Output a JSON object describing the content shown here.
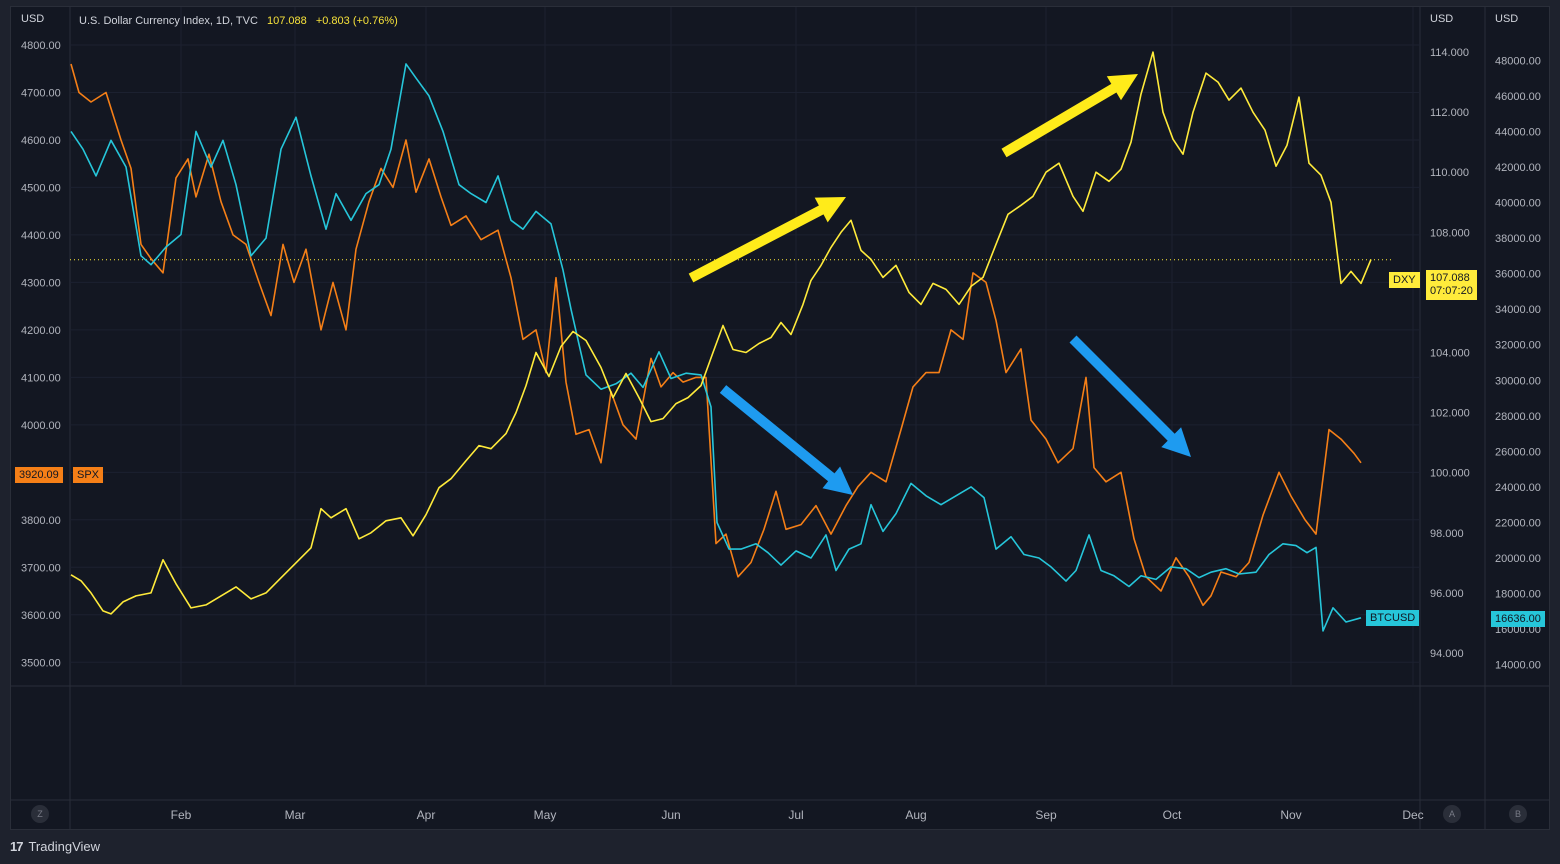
{
  "header": {
    "title": "U.S. Dollar Currency Index, 1D, TVC",
    "price": "107.088",
    "change": "+0.803 (+0.76%)"
  },
  "axis_units": {
    "left": "USD",
    "mid": "USD",
    "right": "USD"
  },
  "badges": {
    "spx_value": "3920.09",
    "spx_label": "SPX",
    "dxy_label": "DXY",
    "dxy_value": "107.088",
    "dxy_countdown": "07:07:20",
    "btc_label": "BTCUSD",
    "btc_value": "16636.00"
  },
  "buttons": {
    "left": "Z",
    "mid": "A",
    "right": "B"
  },
  "footer": {
    "brand": "TradingView"
  },
  "colors": {
    "spx": "#f57f17",
    "btc": "#26c6da",
    "dxy": "#ffeb3b",
    "arrow_yellow": "#ffeb1a",
    "arrow_blue": "#1e9bf0"
  },
  "chart_data": {
    "type": "line",
    "x_labels": [
      "Feb",
      "Mar",
      "Apr",
      "May",
      "Jun",
      "Jul",
      "Aug",
      "Sep",
      "Oct",
      "Nov",
      "Dec"
    ],
    "left_axis": {
      "label": "SPX",
      "ticks": [
        "4800.00",
        "4700.00",
        "4600.00",
        "4500.00",
        "4400.00",
        "4300.00",
        "4200.00",
        "4100.00",
        "4000.00",
        "3900.00",
        "3800.00",
        "3700.00",
        "3600.00",
        "3500.00"
      ],
      "range": [
        3450,
        4880
      ]
    },
    "dxy_axis": {
      "label": "DXY",
      "ticks": [
        "114.000",
        "112.000",
        "110.000",
        "108.000",
        "106.000",
        "104.000",
        "102.000",
        "100.000",
        "98.000",
        "96.000",
        "94.000"
      ],
      "range": [
        92.9,
        115.5
      ]
    },
    "btc_axis": {
      "label": "BTCUSD",
      "ticks": [
        "48000.00",
        "46000.00",
        "44000.00",
        "42000.00",
        "40000.00",
        "38000.00",
        "36000.00",
        "34000.00",
        "32000.00",
        "30000.00",
        "28000.00",
        "26000.00",
        "24000.00",
        "22000.00",
        "20000.00",
        "18000.00",
        "16000.00",
        "14000.00"
      ],
      "range": [
        12800,
        51000
      ]
    },
    "series": [
      {
        "name": "SPX",
        "values": [
          [
            0,
            4770
          ],
          [
            3,
            4700
          ],
          [
            6,
            4695
          ],
          [
            9,
            4675
          ],
          [
            12,
            4670
          ],
          [
            15,
            4695
          ],
          [
            18,
            4650
          ],
          [
            21,
            4605
          ],
          [
            24,
            4585
          ],
          [
            27,
            4570
          ],
          [
            30,
            4510
          ],
          [
            33,
            4470
          ],
          [
            36,
            4420
          ],
          [
            39,
            4395
          ],
          [
            42,
            4380
          ],
          [
            45,
            4360
          ],
          [
            48,
            4350
          ],
          [
            51,
            4335
          ],
          [
            54,
            4330
          ],
          [
            57,
            4390
          ],
          [
            60,
            4440
          ],
          [
            63,
            4510
          ],
          [
            66,
            4530
          ],
          [
            69,
            4550
          ],
          [
            72,
            4580
          ],
          [
            75,
            4590
          ],
          [
            78,
            4570
          ],
          [
            81,
            4530
          ],
          [
            84,
            4500
          ],
          [
            87,
            4495
          ],
          [
            90,
            4505
          ],
          [
            93,
            4530
          ],
          [
            96,
            4570
          ],
          [
            99,
            4560
          ],
          [
            102,
            4520
          ],
          [
            105,
            4470
          ],
          [
            108,
            4440
          ],
          [
            111,
            4410
          ],
          [
            114,
            4400
          ],
          [
            117,
            4390
          ],
          [
            120,
            4380
          ],
          [
            123,
            4360
          ],
          [
            126,
            4340
          ],
          [
            129,
            4320
          ],
          [
            132,
            4300
          ],
          [
            135,
            4285
          ],
          [
            138,
            4270
          ],
          [
            141,
            4310
          ],
          [
            144,
            4370
          ],
          [
            147,
            4380
          ],
          [
            150,
            4350
          ],
          [
            153,
            4310
          ],
          [
            156,
            4280
          ],
          [
            159,
            4250
          ],
          [
            162,
            4210
          ],
          [
            165,
            4190
          ],
          [
            168,
            4200
          ],
          [
            171,
            4230
          ],
          [
            174,
            4250
          ],
          [
            177,
            4270
          ],
          [
            180,
            4300
          ],
          [
            183,
            4340
          ],
          [
            186,
            4380
          ],
          [
            189,
            4410
          ],
          [
            192,
            4440
          ],
          [
            195,
            4460
          ],
          [
            198,
            4450
          ],
          [
            201,
            4440
          ],
          [
            204,
            4420
          ],
          [
            207,
            4410
          ],
          [
            210,
            4480
          ],
          [
            213,
            4520
          ],
          [
            216,
            4560
          ],
          [
            219,
            4580
          ],
          [
            222,
            4620
          ],
          [
            225,
            4590
          ],
          [
            228,
            4540
          ],
          [
            231,
            4500
          ],
          [
            234,
            4480
          ],
          [
            237,
            4470
          ],
          [
            240,
            4430
          ],
          [
            243,
            4410
          ],
          [
            246,
            4400
          ],
          [
            249,
            4390
          ],
          [
            252,
            4380
          ],
          [
            255,
            4350
          ],
          [
            258,
            4320
          ],
          [
            261,
            4270
          ],
          [
            264,
            4200
          ],
          [
            267,
            4170
          ],
          [
            270,
            4120
          ],
          [
            273,
            4100
          ],
          [
            276,
            4060
          ],
          [
            279,
            4030
          ],
          [
            282,
            4000
          ],
          [
            285,
            3980
          ],
          [
            288,
            3950
          ],
          [
            291,
            3960
          ],
          [
            294,
            3990
          ],
          [
            297,
            4040
          ],
          [
            300,
            4070
          ],
          [
            303,
            4060
          ],
          [
            306,
            4050
          ],
          [
            309,
            4030
          ],
          [
            312,
            4040
          ],
          [
            315,
            4060
          ],
          [
            318,
            4080
          ],
          [
            321,
            4090
          ],
          [
            324,
            4120
          ],
          [
            327,
            4130
          ],
          [
            330,
            4100
          ],
          [
            333,
            4060
          ],
          [
            336,
            4010
          ],
          [
            339,
            3960
          ],
          [
            342,
            3900
          ],
          [
            345,
            3830
          ],
          [
            348,
            3730
          ],
          [
            351,
            3670
          ],
          [
            354,
            3690
          ],
          [
            357,
            3720
          ],
          [
            360,
            3780
          ],
          [
            363,
            3840
          ],
          [
            366,
            3880
          ],
          [
            369,
            3900
          ],
          [
            372,
            3880
          ],
          [
            375,
            3850
          ],
          [
            378,
            3820
          ],
          [
            381,
            3800
          ],
          [
            384,
            3810
          ],
          [
            387,
            3830
          ],
          [
            390,
            3870
          ],
          [
            393,
            3920
          ],
          [
            396,
            3960
          ],
          [
            399,
            3990
          ],
          [
            402,
            4010
          ],
          [
            405,
            4050
          ],
          [
            408,
            4080
          ],
          [
            411,
            4110
          ],
          [
            414,
            4130
          ],
          [
            417,
            4150
          ],
          [
            420,
            4160
          ],
          [
            423,
            4170
          ],
          [
            426,
            4190
          ],
          [
            429,
            4200
          ],
          [
            432,
            4230
          ],
          [
            435,
            4270
          ],
          [
            438,
            4290
          ],
          [
            441,
            4305
          ],
          [
            444,
            4290
          ],
          [
            447,
            4260
          ],
          [
            450,
            4220
          ],
          [
            453,
            4150
          ],
          [
            456,
            4080
          ],
          [
            459,
            4020
          ],
          [
            462,
            3990
          ],
          [
            465,
            3970
          ],
          [
            468,
            3960
          ],
          [
            471,
            3950
          ],
          [
            474,
            3930
          ],
          [
            477,
            3900
          ],
          [
            480,
            3870
          ],
          [
            483,
            3830
          ],
          [
            486,
            3800
          ],
          [
            489,
            3770
          ],
          [
            492,
            3730
          ],
          [
            495,
            3700
          ],
          [
            498,
            3690
          ],
          [
            501,
            3670
          ],
          [
            504,
            3640
          ],
          [
            507,
            3620
          ],
          [
            510,
            3600
          ],
          [
            513,
            3620
          ],
          [
            516,
            3660
          ],
          [
            519,
            3700
          ],
          [
            522,
            3720
          ],
          [
            525,
            3740
          ],
          [
            528,
            3760
          ],
          [
            531,
            3790
          ],
          [
            534,
            3820
          ],
          [
            537,
            3850
          ],
          [
            540,
            3860
          ],
          [
            543,
            3860
          ],
          [
            546,
            3840
          ],
          [
            549,
            3800
          ],
          [
            552,
            3780
          ],
          [
            555,
            3810
          ],
          [
            558,
            3860
          ],
          [
            561,
            3920
          ],
          [
            564,
            3970
          ],
          [
            567,
            3990
          ],
          [
            570,
            3960
          ],
          [
            573,
            3930
          ]
        ],
        "encoding": "index:spx_value (x index is trading-day order, smoothed)"
      },
      {
        "name": "BTCUSD",
        "values": []
      },
      {
        "name": "DXY",
        "values": []
      }
    ],
    "annotations": [
      "yellow arrow up",
      "yellow arrow up",
      "blue arrow down",
      "blue arrow down"
    ],
    "grid": true
  }
}
